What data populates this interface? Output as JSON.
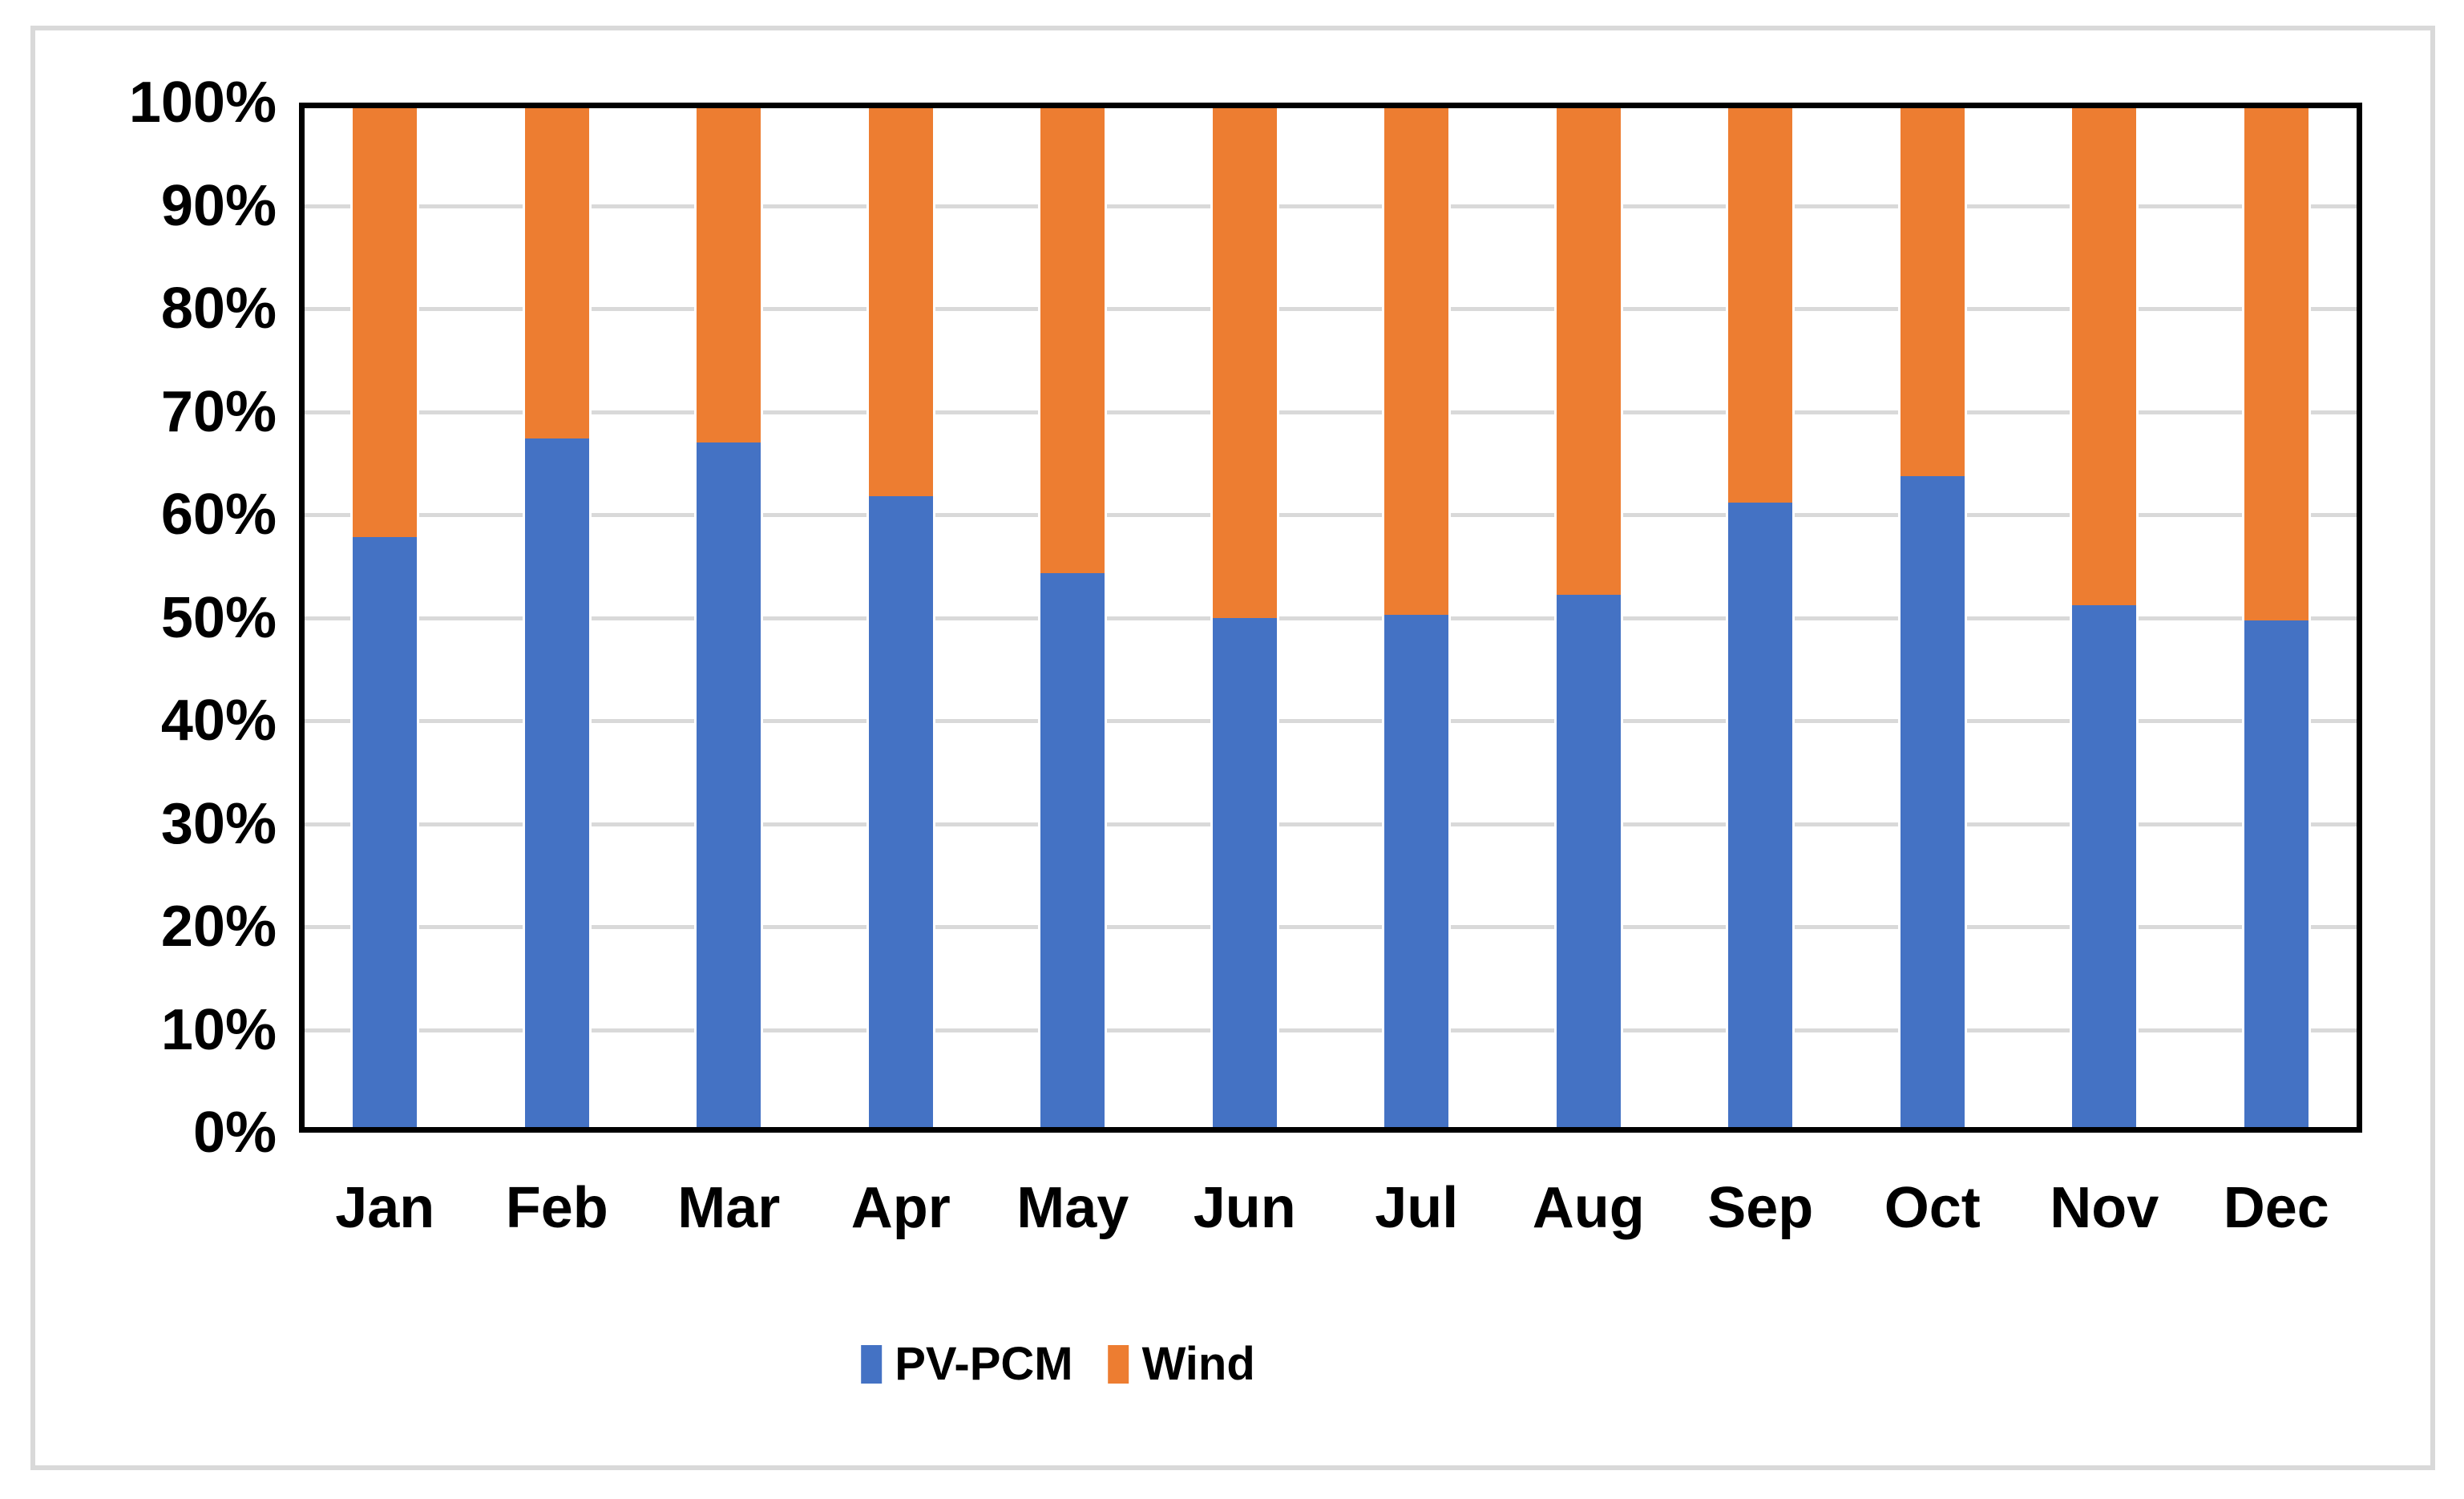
{
  "figure": {
    "background_color": "#ffffff",
    "outer_border_color": "#d9d9d9",
    "plot_frame_color": "#000000"
  },
  "chart_data": {
    "type": "bar",
    "stacked": true,
    "percent_stacked": true,
    "title": "",
    "xlabel": "",
    "ylabel": "",
    "categories": [
      "Jan",
      "Feb",
      "Mar",
      "Apr",
      "May",
      "Jun",
      "Jul",
      "Aug",
      "Sep",
      "Oct",
      "Nov",
      "Dec"
    ],
    "series": [
      {
        "name": "PV-PCM",
        "color": "#4472C4",
        "values": [
          57.8,
          67.4,
          67.0,
          61.8,
          54.3,
          50.0,
          50.3,
          52.2,
          61.2,
          63.7,
          51.2,
          49.7
        ]
      },
      {
        "name": "Wind",
        "color": "#ED7D31",
        "values": [
          42.2,
          32.6,
          33.0,
          38.2,
          45.7,
          50.0,
          49.7,
          47.8,
          38.8,
          36.3,
          48.8,
          50.3
        ]
      }
    ],
    "ylim": [
      0,
      100
    ],
    "yticks": [
      "0%",
      "10%",
      "20%",
      "30%",
      "40%",
      "50%",
      "60%",
      "70%",
      "80%",
      "90%",
      "100%"
    ],
    "grid": true,
    "gridline_color": "#d9d9d9",
    "legend_position": "bottom",
    "legend_labels": [
      "PV-PCM",
      "Wind"
    ],
    "axis_text_color": "#000000"
  }
}
